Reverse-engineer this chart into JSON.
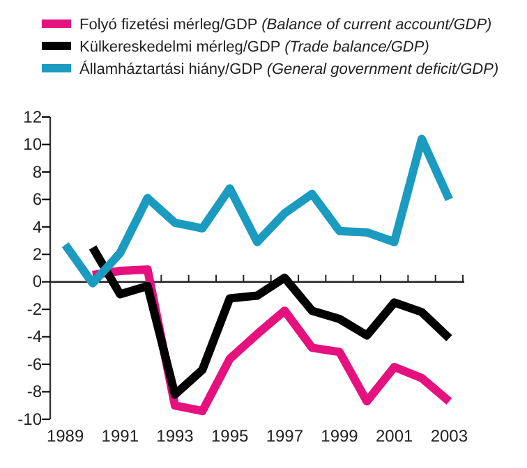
{
  "chart_data": {
    "type": "line",
    "x": [
      1989,
      1990,
      1991,
      1992,
      1993,
      1994,
      1995,
      1996,
      1997,
      1998,
      1999,
      2000,
      2001,
      2002,
      2003
    ],
    "series": [
      {
        "name": "Folyó fizetési mérleg/GDP (Balance of current account/GDP)",
        "color": "#e5117f",
        "values": [
          null,
          0.5,
          0.8,
          0.9,
          -9.0,
          -9.4,
          -5.6,
          -3.8,
          -2.1,
          -4.8,
          -5.1,
          -8.7,
          -6.2,
          -7.0,
          -8.7
        ]
      },
      {
        "name": "Külkereskedelmi mérleg/GDP (Trade balance/GDP)",
        "color": "#000000",
        "values": [
          null,
          2.5,
          -0.9,
          -0.3,
          -8.2,
          -6.4,
          -1.2,
          -1.0,
          0.3,
          -2.1,
          -2.7,
          -3.9,
          -1.5,
          -2.2,
          -4.1
        ]
      },
      {
        "name": "Államháztartási hiány/GDP (General government deficit/GDP)",
        "color": "#1a9bbf",
        "values": [
          2.7,
          -0.1,
          2.1,
          6.1,
          4.3,
          3.9,
          6.8,
          2.9,
          5.0,
          6.4,
          3.7,
          3.6,
          2.9,
          10.4,
          6.0
        ]
      }
    ],
    "xlim": [
      1988.45,
      2003.55
    ],
    "xticks": [
      1989,
      1991,
      1993,
      1995,
      1997,
      1999,
      2001,
      2003,
      {
        "value": 1992.5,
        "label": null
      },
      {
        "value": 1993.5,
        "label": null
      },
      {
        "value": 1994.5,
        "label": null
      },
      {
        "value": 1995.5,
        "label": null
      },
      {
        "value": 1996.5,
        "label": null
      },
      {
        "value": 1997.5,
        "label": null
      },
      {
        "value": 1998.5,
        "label": null
      },
      {
        "value": 1999.5,
        "label": null
      },
      {
        "value": 2000.5,
        "label": null
      },
      {
        "value": 2001.5,
        "label": null
      },
      {
        "value": 2002.5,
        "label": null
      },
      {
        "value": 2003.5,
        "label": null
      }
    ],
    "ylim": [
      -10,
      12
    ],
    "yticks": [
      -10,
      -8,
      -6,
      -4,
      -2,
      0,
      2,
      4,
      6,
      8,
      10,
      12
    ],
    "ref_lines": [
      {
        "axis": "y",
        "value": 0
      }
    ],
    "legend": "top",
    "line_style": "solid",
    "marker": "none"
  }
}
